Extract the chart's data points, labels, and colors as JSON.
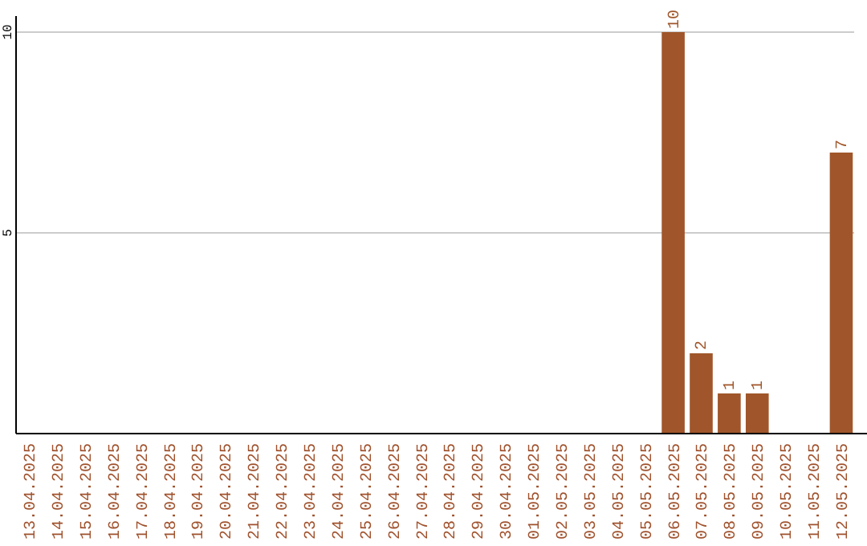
{
  "chart_data": {
    "type": "bar",
    "categories": [
      "13.04.2025",
      "14.04.2025",
      "15.04.2025",
      "16.04.2025",
      "17.04.2025",
      "18.04.2025",
      "19.04.2025",
      "20.04.2025",
      "21.04.2025",
      "22.04.2025",
      "23.04.2025",
      "24.04.2025",
      "25.04.2025",
      "26.04.2025",
      "27.04.2025",
      "28.04.2025",
      "29.04.2025",
      "30.04.2025",
      "01.05.2025",
      "02.05.2025",
      "03.05.2025",
      "04.05.2025",
      "05.05.2025",
      "06.05.2025",
      "07.05.2025",
      "08.05.2025",
      "09.05.2025",
      "10.05.2025",
      "11.05.2025",
      "12.05.2025"
    ],
    "values": [
      0,
      0,
      0,
      0,
      0,
      0,
      0,
      0,
      0,
      0,
      0,
      0,
      0,
      0,
      0,
      0,
      0,
      0,
      0,
      0,
      0,
      0,
      0,
      10,
      2,
      1,
      1,
      0,
      0,
      7
    ],
    "value_labels": [
      null,
      null,
      null,
      null,
      null,
      null,
      null,
      null,
      null,
      null,
      null,
      null,
      null,
      null,
      null,
      null,
      null,
      null,
      null,
      null,
      null,
      null,
      null,
      "10",
      "2",
      "1",
      "1",
      null,
      null,
      "7"
    ],
    "color": "#a0562a",
    "ylim": [
      0,
      10
    ],
    "yticks": [
      5,
      10
    ],
    "grid": "y"
  }
}
